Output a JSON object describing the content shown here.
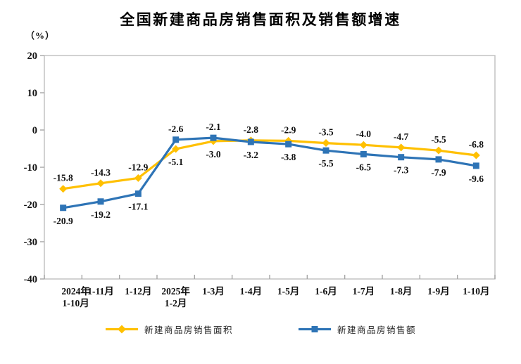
{
  "chart_data": {
    "type": "line",
    "title": "全国新建商品房销售面积及销售额增速",
    "unit_label": "（%）",
    "categories": [
      "2024年\n1-10月",
      "1-11月",
      "1-12月",
      "2025年\n1-2月",
      "1-3月",
      "1-4月",
      "1-5月",
      "1-6月",
      "1-7月",
      "1-8月",
      "1-9月",
      "1-10月"
    ],
    "series": [
      {
        "name": "新建商品房销售面积",
        "color": "#FFC000",
        "marker": "diamond",
        "values": [
          -15.8,
          -14.3,
          -12.9,
          -5.1,
          -3.0,
          -2.8,
          -2.9,
          -3.5,
          -4.0,
          -4.7,
          -5.5,
          -6.8
        ]
      },
      {
        "name": "新建商品房销售额",
        "color": "#2E74B6",
        "marker": "square",
        "values": [
          -20.9,
          -19.2,
          -17.1,
          -2.6,
          -2.1,
          -3.2,
          -3.8,
          -5.5,
          -6.5,
          -7.3,
          -7.9,
          -9.6
        ]
      }
    ],
    "ylim": [
      -40,
      20
    ],
    "yticks": [
      20,
      10,
      0,
      -10,
      -20,
      -30,
      -40
    ],
    "grid": false,
    "legend_position": "bottom"
  }
}
